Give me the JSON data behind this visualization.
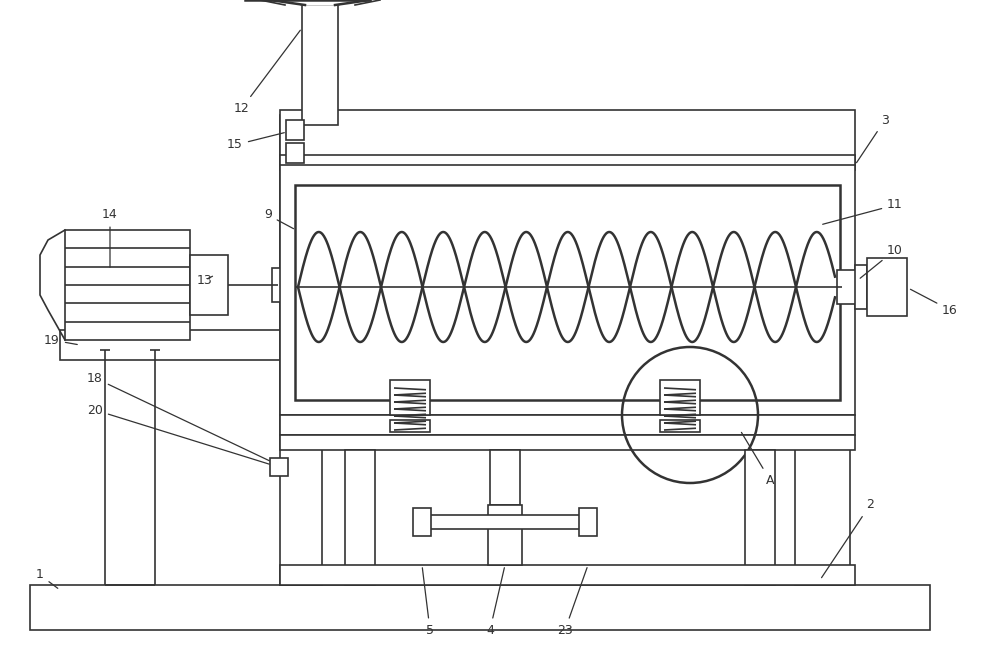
{
  "bg_color": "#ffffff",
  "line_color": "#333333",
  "lw": 1.2,
  "lw_thick": 1.8,
  "fig_width": 10.0,
  "fig_height": 6.49
}
